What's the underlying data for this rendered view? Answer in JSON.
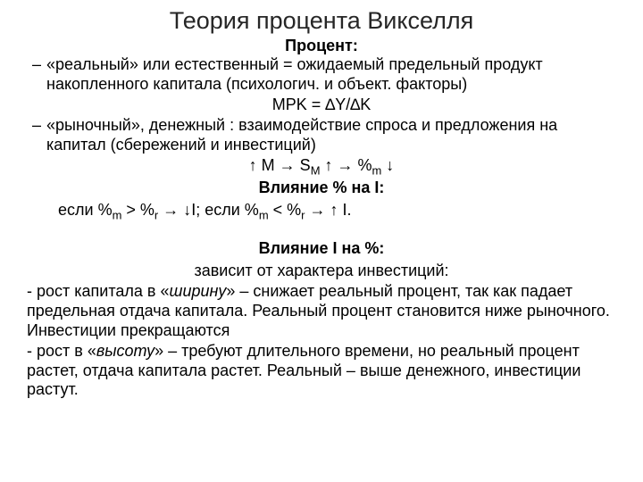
{
  "title": "Теория процента Викселля",
  "heading_percent": "Процент:",
  "bullet1_dash": "–",
  "bullet1_text": " «реальный» или естественный =  ожидаемый предельный продукт накопленного капитала (психологич. и объект. факторы)",
  "formula_mpk": "MPK = ∆Y/∆K",
  "bullet2_dash": "–",
  "bullet2_text": "«рыночный», денежный : взаимодействие спроса и предложения на капитал (сбережений и инвестиций)",
  "arrow_seq": {
    "p1": "↑ M → S",
    "sub1": "M",
    "p2": " ↑ → %",
    "sub2": "m",
    "p3": " ↓"
  },
  "heading_effect_on_I": "Влияние % на I:",
  "cond": {
    "c1": "если %",
    "s1": "m",
    "c2": " > %",
    "s2": "r",
    "c3": " → ↓I;  если %",
    "s3": "m",
    "c4": " < %",
    "s4": "r",
    "c5": " → ↑ I."
  },
  "heading_effect_on_pct": "Влияние I на %:",
  "depends_line": "зависит от характера инвестиций:",
  "para_width_pre": " - рост капитала в «",
  "para_width_italic": "ширину",
  "para_width_post": "» – снижает реальный процент, так как падает предельная отдача капитала. Реальный процент становится ниже рыночного. Инвестиции прекращаются",
  "para_height_pre": " - рост в «",
  "para_height_italic": "высоту",
  "para_height_post": "» – требуют длительного времени, но реальный процент растет, отдача капитала растет. Реальный – выше денежного, инвестиции растут.",
  "colors": {
    "text": "#000000",
    "bg": "#ffffff"
  },
  "fontsize": {
    "title": 27,
    "body": 18
  }
}
